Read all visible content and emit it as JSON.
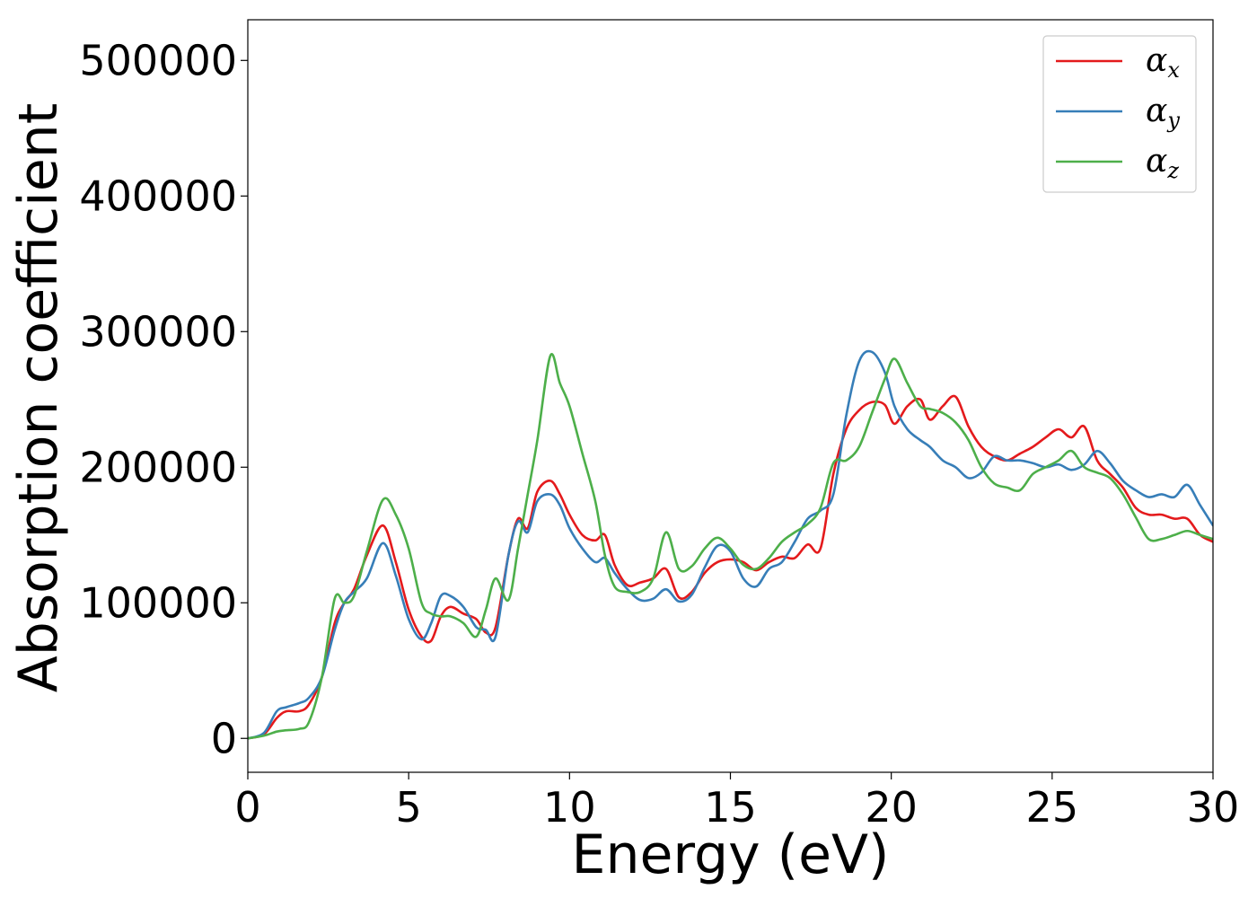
{
  "chart_data": {
    "type": "line",
    "xlabel": "Energy (eV)",
    "ylabel": "Absorption coefficient",
    "xlim": [
      0,
      30
    ],
    "ylim": [
      -25000,
      530000
    ],
    "xticks": [
      0,
      5,
      10,
      15,
      20,
      25,
      30
    ],
    "yticks": [
      0,
      100000,
      200000,
      300000,
      400000,
      500000
    ],
    "xtick_labels": [
      "0",
      "5",
      "10",
      "15",
      "20",
      "25",
      "30"
    ],
    "ytick_labels": [
      "0",
      "100000",
      "200000",
      "300000",
      "400000",
      "500000"
    ],
    "grid": false,
    "legend_position": "top-right",
    "series": [
      {
        "name": "α_x",
        "legend_base": "α",
        "legend_sub": "x",
        "color": "#e41a1c",
        "x": [
          0,
          0.5,
          0.9,
          1.2,
          1.6,
          1.9,
          2.3,
          2.7,
          3.0,
          3.3,
          3.7,
          4.2,
          4.6,
          5.0,
          5.4,
          5.7,
          6.0,
          6.3,
          6.7,
          7.1,
          7.4,
          7.7,
          8.1,
          8.4,
          8.7,
          9.0,
          9.4,
          9.7,
          10.0,
          10.4,
          10.8,
          11.1,
          11.4,
          11.8,
          12.2,
          12.6,
          13.0,
          13.4,
          13.8,
          14.2,
          14.6,
          15.0,
          15.4,
          15.8,
          16.2,
          16.6,
          17.0,
          17.4,
          17.8,
          18.2,
          18.6,
          19.0,
          19.4,
          19.8,
          20.1,
          20.5,
          20.9,
          21.2,
          21.6,
          22.0,
          22.4,
          22.8,
          23.2,
          23.6,
          24.0,
          24.4,
          24.8,
          25.2,
          25.6,
          26.0,
          26.4,
          26.8,
          27.2,
          27.6,
          28.0,
          28.4,
          28.8,
          29.2,
          29.6,
          30.0
        ],
        "y": [
          0,
          3000,
          15000,
          20000,
          20000,
          25000,
          45000,
          85000,
          100000,
          110000,
          135000,
          157000,
          130000,
          95000,
          75000,
          72000,
          90000,
          97000,
          92000,
          88000,
          78000,
          82000,
          135000,
          162000,
          155000,
          182000,
          190000,
          180000,
          165000,
          150000,
          146000,
          150000,
          128000,
          113000,
          115000,
          118000,
          125000,
          104000,
          108000,
          122000,
          130000,
          132000,
          130000,
          124000,
          130000,
          134000,
          133000,
          143000,
          140000,
          195000,
          228000,
          242000,
          248000,
          246000,
          232000,
          245000,
          250000,
          235000,
          245000,
          252000,
          230000,
          215000,
          208000,
          205000,
          210000,
          215000,
          222000,
          228000,
          222000,
          230000,
          205000,
          195000,
          185000,
          170000,
          165000,
          165000,
          162000,
          162000,
          150000,
          145000
        ]
      },
      {
        "name": "α_y",
        "legend_base": "α",
        "legend_sub": "y",
        "color": "#377eb8",
        "x": [
          0,
          0.5,
          0.9,
          1.2,
          1.6,
          1.9,
          2.3,
          2.7,
          3.0,
          3.3,
          3.7,
          4.2,
          4.6,
          5.0,
          5.4,
          5.7,
          6.0,
          6.3,
          6.7,
          7.1,
          7.4,
          7.7,
          8.1,
          8.4,
          8.7,
          9.0,
          9.4,
          9.7,
          10.0,
          10.4,
          10.8,
          11.1,
          11.4,
          11.8,
          12.2,
          12.6,
          13.0,
          13.4,
          13.8,
          14.2,
          14.6,
          15.0,
          15.4,
          15.8,
          16.2,
          16.6,
          17.0,
          17.4,
          17.8,
          18.2,
          18.6,
          19.0,
          19.4,
          19.8,
          20.1,
          20.5,
          20.9,
          21.2,
          21.6,
          22.0,
          22.4,
          22.8,
          23.2,
          23.6,
          24.0,
          24.4,
          24.8,
          25.2,
          25.6,
          26.0,
          26.4,
          26.8,
          27.2,
          27.6,
          28.0,
          28.4,
          28.8,
          29.2,
          29.6,
          30.0
        ],
        "y": [
          0,
          4000,
          20000,
          23000,
          26000,
          30000,
          45000,
          80000,
          100000,
          108000,
          118000,
          144000,
          120000,
          88000,
          73000,
          85000,
          105000,
          105000,
          97000,
          82000,
          80000,
          75000,
          135000,
          160000,
          152000,
          175000,
          180000,
          172000,
          155000,
          140000,
          130000,
          133000,
          122000,
          110000,
          102000,
          103000,
          110000,
          101000,
          106000,
          126000,
          142000,
          138000,
          118000,
          112000,
          125000,
          130000,
          145000,
          162000,
          168000,
          180000,
          238000,
          278000,
          285000,
          270000,
          245000,
          228000,
          220000,
          215000,
          205000,
          200000,
          192000,
          196000,
          208000,
          205000,
          205000,
          203000,
          200000,
          202000,
          198000,
          202000,
          212000,
          203000,
          190000,
          183000,
          178000,
          180000,
          178000,
          187000,
          172000,
          157000
        ]
      },
      {
        "name": "α_z",
        "legend_base": "α",
        "legend_sub": "z",
        "color": "#4daf4a",
        "x": [
          0,
          0.5,
          0.9,
          1.2,
          1.6,
          1.9,
          2.3,
          2.7,
          3.0,
          3.3,
          3.7,
          4.2,
          4.6,
          5.0,
          5.4,
          5.7,
          6.0,
          6.3,
          6.7,
          7.1,
          7.4,
          7.7,
          8.1,
          8.4,
          8.7,
          9.0,
          9.4,
          9.7,
          10.0,
          10.4,
          10.8,
          11.1,
          11.4,
          11.8,
          12.2,
          12.6,
          13.0,
          13.4,
          13.8,
          14.2,
          14.6,
          15.0,
          15.4,
          15.8,
          16.2,
          16.6,
          17.0,
          17.4,
          17.8,
          18.2,
          18.6,
          19.0,
          19.4,
          19.8,
          20.1,
          20.5,
          20.9,
          21.2,
          21.6,
          22.0,
          22.4,
          22.8,
          23.2,
          23.6,
          24.0,
          24.4,
          24.8,
          25.2,
          25.6,
          26.0,
          26.4,
          26.8,
          27.2,
          27.6,
          28.0,
          28.4,
          28.8,
          29.2,
          29.6,
          30.0
        ],
        "y": [
          0,
          2000,
          5000,
          6000,
          7000,
          12000,
          45000,
          103000,
          100000,
          105000,
          138000,
          176000,
          165000,
          140000,
          100000,
          92000,
          90000,
          90000,
          85000,
          75000,
          95000,
          118000,
          102000,
          140000,
          180000,
          220000,
          282000,
          262000,
          245000,
          210000,
          175000,
          135000,
          112000,
          108000,
          108000,
          118000,
          152000,
          125000,
          127000,
          140000,
          148000,
          140000,
          128000,
          125000,
          133000,
          145000,
          152000,
          158000,
          170000,
          203000,
          205000,
          215000,
          240000,
          265000,
          280000,
          262000,
          245000,
          243000,
          240000,
          233000,
          220000,
          200000,
          188000,
          185000,
          183000,
          195000,
          200000,
          205000,
          212000,
          200000,
          196000,
          192000,
          180000,
          163000,
          147000,
          147000,
          150000,
          153000,
          150000,
          147000
        ]
      }
    ]
  }
}
